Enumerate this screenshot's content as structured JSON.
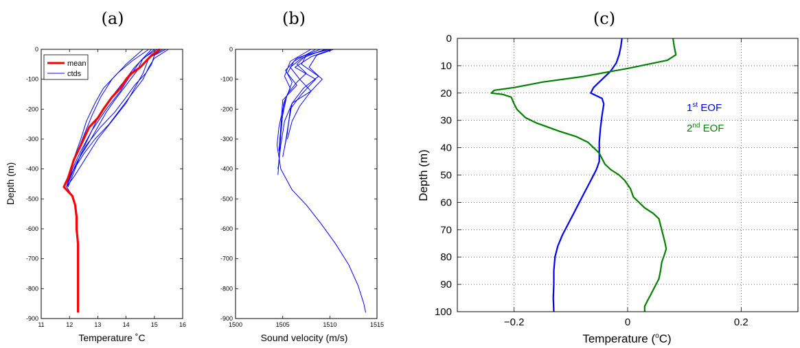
{
  "panels": [
    {
      "label": "(a)"
    },
    {
      "label": "(b)"
    },
    {
      "label": "(c)"
    }
  ],
  "colors": {
    "mean": "#ff0000",
    "ctds": "#0000ff",
    "eof1": "#0000ff",
    "eof2": "#008000"
  },
  "chart_data": [
    {
      "type": "line",
      "xlabel": "Temperature ˚C",
      "ylabel": "Depth (m)",
      "xlim": [
        11,
        16
      ],
      "ylim": [
        -900,
        0
      ],
      "xticks": [
        11,
        12,
        13,
        14,
        15,
        16
      ],
      "yticks": [
        0,
        -100,
        -200,
        -300,
        -400,
        -500,
        -600,
        -700,
        -800,
        -900
      ],
      "legend": {
        "position": "top-left",
        "entries": [
          "mean",
          "ctds"
        ]
      },
      "series": [
        {
          "name": "mean",
          "x": [
            15.2,
            14.9,
            14.7,
            14.5,
            14.2,
            14.0,
            13.8,
            13.5,
            13.2,
            13.0,
            12.7,
            12.5,
            12.3,
            12.15,
            12.05,
            11.95,
            11.8,
            12.1,
            12.2,
            12.25,
            12.25,
            12.3,
            12.3,
            12.3,
            12.3,
            12.3,
            12.3,
            12.3
          ],
          "y": [
            0,
            -20,
            -40,
            -60,
            -80,
            -100,
            -130,
            -160,
            -200,
            -230,
            -260,
            -300,
            -340,
            -370,
            -400,
            -430,
            -460,
            -490,
            -520,
            -560,
            -600,
            -650,
            -700,
            -750,
            -800,
            -840,
            -860,
            -880
          ]
        },
        {
          "name": "ctds",
          "x": [
            15.0,
            14.5,
            14.2,
            13.8,
            13.3,
            12.8,
            12.4,
            12.1,
            11.9
          ],
          "y": [
            0,
            -40,
            -80,
            -140,
            -200,
            -270,
            -340,
            -400,
            -460
          ]
        },
        {
          "name": "ctds",
          "x": [
            15.3,
            14.8,
            14.6,
            14.3,
            14.0,
            13.5,
            13.0,
            12.6,
            12.2,
            11.9
          ],
          "y": [
            0,
            -30,
            -80,
            -130,
            -180,
            -240,
            -300,
            -360,
            -420,
            -460
          ]
        },
        {
          "name": "ctds",
          "x": [
            14.8,
            14.2,
            13.7,
            13.2,
            12.9,
            12.6,
            12.4,
            12.1,
            11.9
          ],
          "y": [
            0,
            -40,
            -80,
            -130,
            -180,
            -240,
            -300,
            -380,
            -460
          ]
        },
        {
          "name": "ctds",
          "x": [
            15.5,
            15.0,
            14.8,
            14.6,
            14.2,
            13.8,
            13.4,
            12.9,
            12.5,
            12.1,
            11.9
          ],
          "y": [
            0,
            -30,
            -60,
            -100,
            -150,
            -200,
            -250,
            -300,
            -350,
            -410,
            -460
          ]
        },
        {
          "name": "ctds",
          "x": [
            14.6,
            14.0,
            13.5,
            13.1,
            12.8,
            12.5,
            12.2,
            12.0,
            11.9
          ],
          "y": [
            0,
            -50,
            -100,
            -160,
            -220,
            -290,
            -360,
            -420,
            -460
          ]
        },
        {
          "name": "ctds",
          "x": [
            15.1,
            14.6,
            14.4,
            14.0,
            13.6,
            13.3,
            13.0,
            12.7,
            12.3,
            12.0,
            11.9
          ],
          "y": [
            0,
            -30,
            -70,
            -120,
            -170,
            -210,
            -260,
            -310,
            -370,
            -430,
            -460
          ]
        },
        {
          "name": "ctds",
          "x": [
            15.4,
            15.0,
            14.9,
            14.7,
            14.3,
            14.0,
            13.6,
            13.1,
            12.6,
            12.2,
            11.9
          ],
          "y": [
            0,
            -20,
            -50,
            -80,
            -120,
            -160,
            -210,
            -260,
            -320,
            -390,
            -460
          ]
        },
        {
          "name": "ctds",
          "x": [
            14.9,
            14.3,
            13.9,
            13.4,
            13.0,
            12.7,
            12.4,
            12.2,
            11.95
          ],
          "y": [
            0,
            -60,
            -110,
            -170,
            -230,
            -290,
            -350,
            -400,
            -460
          ]
        },
        {
          "name": "ctds",
          "x": [
            11.9,
            12.1,
            12.2,
            12.25,
            12.25,
            12.3,
            12.3,
            12.3,
            12.3
          ],
          "y": [
            -460,
            -490,
            -520,
            -560,
            -600,
            -650,
            -700,
            -800,
            -880
          ]
        }
      ]
    },
    {
      "type": "line",
      "xlabel": "Sound velocity (m/s)",
      "ylabel": "",
      "xlim": [
        1500,
        1515
      ],
      "ylim": [
        -900,
        0
      ],
      "xticks": [
        1500,
        1505,
        1510,
        1515
      ],
      "yticks": [
        0,
        -100,
        -200,
        -300,
        -400,
        -500,
        -600,
        -700,
        -800,
        -900
      ],
      "series": [
        {
          "name": "ctds",
          "x": [
            1510.0,
            1507.5,
            1506.5,
            1507.5,
            1506.5,
            1505.5,
            1505.0,
            1504.6,
            1504.4,
            1504.8,
            1506.0,
            1507.5,
            1509.0,
            1510.6,
            1512.0,
            1513.0,
            1513.6,
            1513.8
          ],
          "y": [
            0,
            -20,
            -50,
            -80,
            -110,
            -150,
            -200,
            -260,
            -320,
            -400,
            -470,
            -520,
            -580,
            -650,
            -720,
            -790,
            -850,
            -880
          ]
        },
        {
          "name": "ctds",
          "x": [
            1509.5,
            1507.0,
            1505.8,
            1506.8,
            1508.0,
            1506.0,
            1505.2,
            1504.8,
            1504.5
          ],
          "y": [
            0,
            -30,
            -60,
            -100,
            -140,
            -180,
            -240,
            -320,
            -400
          ]
        },
        {
          "name": "ctds",
          "x": [
            1510.2,
            1508.0,
            1506.3,
            1508.5,
            1507.0,
            1505.8,
            1505.5,
            1505.0
          ],
          "y": [
            0,
            -25,
            -60,
            -100,
            -150,
            -200,
            -280,
            -360
          ]
        },
        {
          "name": "ctds",
          "x": [
            1508.5,
            1506.2,
            1505.5,
            1506.5,
            1505.0,
            1504.8,
            1504.6
          ],
          "y": [
            0,
            -40,
            -80,
            -120,
            -170,
            -260,
            -340
          ]
        },
        {
          "name": "ctds",
          "x": [
            1509.8,
            1507.5,
            1507.0,
            1508.8,
            1507.2,
            1506.0,
            1505.6,
            1505.2
          ],
          "y": [
            0,
            -20,
            -50,
            -90,
            -130,
            -180,
            -250,
            -330
          ]
        },
        {
          "name": "ctds",
          "x": [
            1509.0,
            1506.5,
            1505.3,
            1506.0,
            1505.4,
            1505.0,
            1504.7
          ],
          "y": [
            0,
            -30,
            -70,
            -110,
            -160,
            -220,
            -300
          ]
        },
        {
          "name": "ctds",
          "x": [
            1510.4,
            1508.6,
            1507.8,
            1509.2,
            1508.0,
            1506.8,
            1506.0,
            1505.5
          ],
          "y": [
            0,
            -20,
            -60,
            -100,
            -140,
            -190,
            -240,
            -300
          ]
        },
        {
          "name": "ctds",
          "x": [
            1508.0,
            1505.8,
            1505.2,
            1505.8,
            1505.1,
            1504.9,
            1504.7,
            1504.5
          ],
          "y": [
            0,
            -40,
            -90,
            -130,
            -180,
            -250,
            -330,
            -420
          ]
        }
      ]
    },
    {
      "type": "line",
      "xlabel": "Temperature (°C)",
      "ylabel": "Depth (m)",
      "xlim": [
        -0.3,
        0.3
      ],
      "ylim": [
        100,
        0
      ],
      "grid": true,
      "xticks": [
        -0.2,
        0,
        0.2
      ],
      "xtick_labels": [
        "−0.2",
        "0",
        "0.2"
      ],
      "yticks": [
        0,
        10,
        20,
        30,
        40,
        50,
        60,
        70,
        80,
        90,
        100
      ],
      "annotations": [
        {
          "base": "1",
          "sup": "st",
          "text": " EOF",
          "x": 0.095,
          "y": 21
        },
        {
          "base": "2",
          "sup": "nd",
          "text": " EOF",
          "x": 0.095,
          "y": 28
        }
      ],
      "series": [
        {
          "name": "1st EOF",
          "x": [
            -0.01,
            -0.012,
            -0.015,
            -0.02,
            -0.03,
            -0.045,
            -0.06,
            -0.065,
            -0.055,
            -0.045,
            -0.042,
            -0.045,
            -0.048,
            -0.05,
            -0.05,
            -0.05,
            -0.055,
            -0.065,
            -0.075,
            -0.085,
            -0.095,
            -0.105,
            -0.115,
            -0.123,
            -0.128,
            -0.13,
            -0.13,
            -0.131,
            -0.13
          ],
          "y": [
            0,
            3,
            6,
            9,
            12,
            15,
            18,
            20,
            21,
            22,
            24,
            28,
            33,
            38,
            42,
            45,
            48,
            52,
            56,
            60,
            64,
            68,
            72,
            76,
            80,
            85,
            90,
            95,
            100
          ]
        },
        {
          "name": "2nd EOF",
          "x": [
            0.08,
            0.082,
            0.085,
            0.07,
            0.0,
            -0.08,
            -0.15,
            -0.2,
            -0.235,
            -0.24,
            -0.22,
            -0.205,
            -0.2,
            -0.195,
            -0.18,
            -0.16,
            -0.12,
            -0.09,
            -0.07,
            -0.06,
            -0.05,
            -0.045,
            -0.04,
            -0.03,
            -0.015,
            -0.005,
            0.005,
            0.01,
            0.03,
            0.045,
            0.055,
            0.06,
            0.065,
            0.068,
            0.065,
            0.06,
            0.058,
            0.055,
            0.05,
            0.045,
            0.04,
            0.035,
            0.03,
            0.03
          ],
          "y": [
            0,
            3,
            6,
            8,
            11,
            14,
            16,
            18,
            19,
            20,
            20.5,
            21.5,
            24,
            26,
            29,
            31,
            34,
            36,
            38,
            40,
            42,
            44,
            46,
            48,
            50,
            52,
            55,
            58,
            62,
            64,
            66,
            70,
            74,
            77,
            79,
            82,
            85,
            88,
            90,
            92,
            94,
            96,
            98,
            100
          ]
        }
      ]
    }
  ]
}
